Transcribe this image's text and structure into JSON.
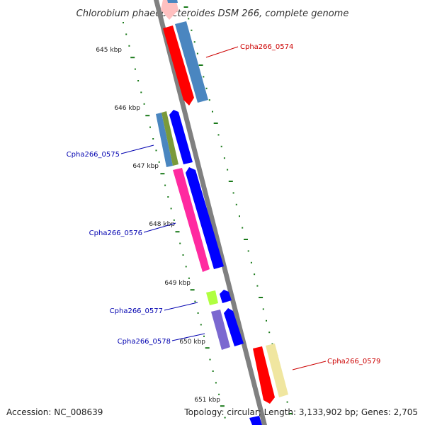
{
  "title": "Chlorobium phaeobacteroides DSM 266, complete genome",
  "footer": {
    "accession": "Accession: NC_008639",
    "summary": "Topology: circular; Length: 3,133,902 bp; Genes: 2,705"
  },
  "scale_labels": [
    "645 kbp",
    "646 kbp",
    "647 kbp",
    "648 kbp",
    "649 kbp",
    "650 kbp",
    "651 kbp"
  ],
  "gene_labels": {
    "g0574": "Cpha266_0574",
    "g0575": "Cpha266_0575",
    "g0576": "Cpha266_0576",
    "g0577": "Cpha266_0577",
    "g0578": "Cpha266_0578",
    "g0579": "Cpha266_0579"
  },
  "colors": {
    "backbone": "#808080",
    "tick": "#1a7a1a",
    "red": "#ff0000",
    "pale_red": "#ffc0c0",
    "steel_blue": "#4a86c0",
    "olive": "#7a9a3a",
    "blue": "#0000ff",
    "magenta": "#ff2aa0",
    "yellow_green": "#b0ff40",
    "slate_blue": "#7b68d0",
    "pale_yellow": "#f0e6a0",
    "label_left": "#0000b0",
    "label_right": "#cc0000"
  }
}
